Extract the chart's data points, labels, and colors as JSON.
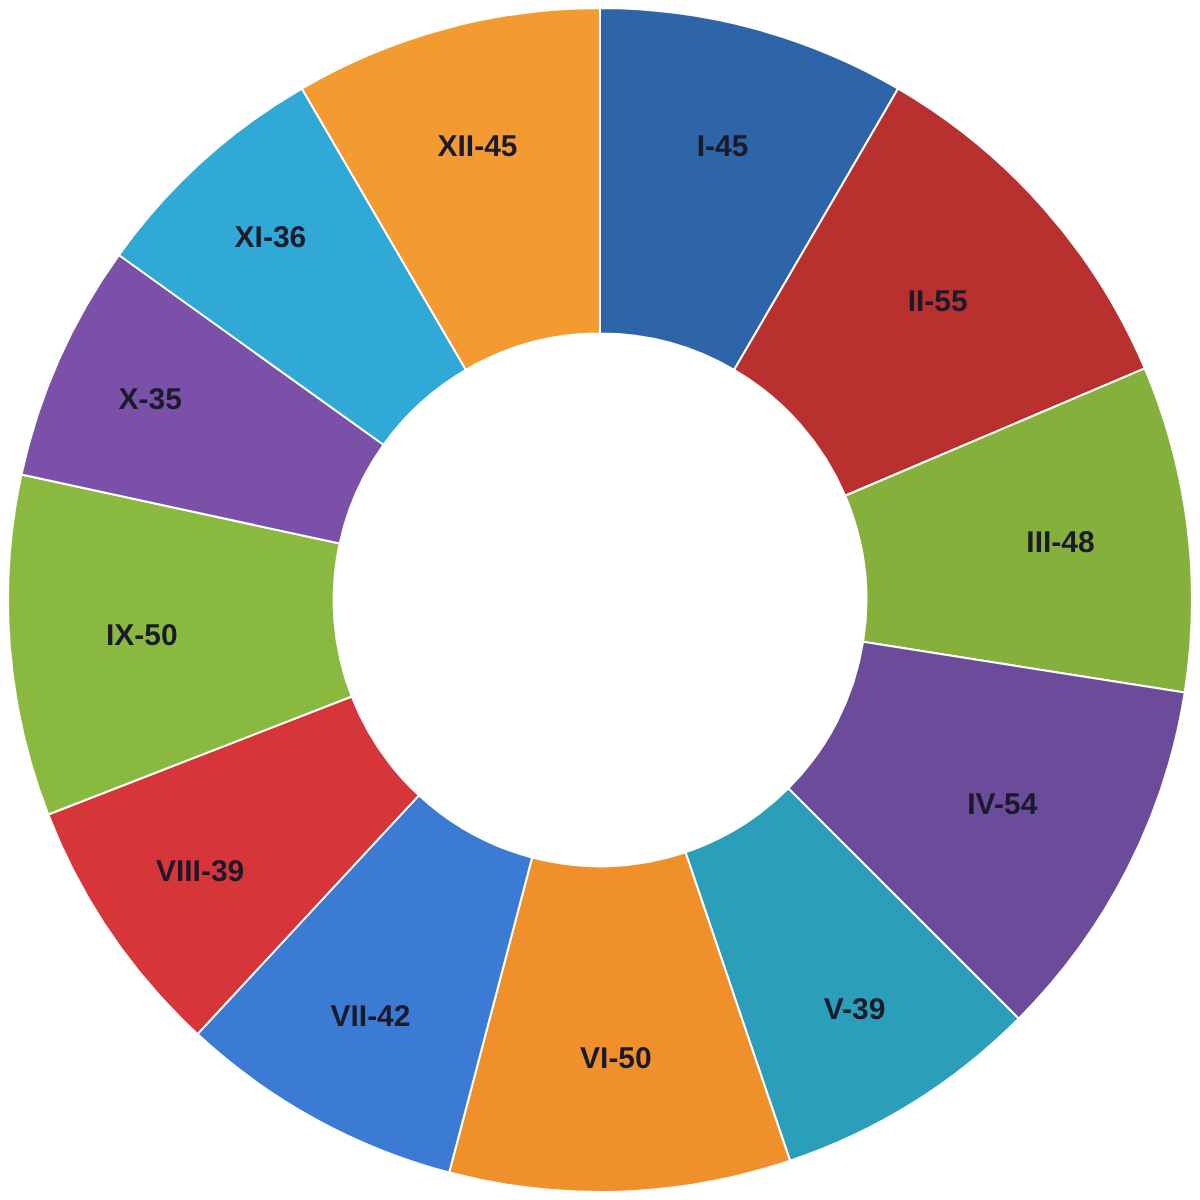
{
  "chart_data": {
    "type": "donut",
    "categories": [
      "I-45",
      "II-55",
      "III-48",
      "IV-54",
      "V-39",
      "VI-50",
      "VII-42",
      "VIII-39",
      "IX-50",
      "X-35",
      "XI-36",
      "XII-45"
    ],
    "values": [
      8.4,
      10.2,
      8.9,
      10.0,
      7.3,
      9.3,
      7.8,
      7.2,
      9.3,
      6.5,
      6.7,
      8.4
    ],
    "colors": [
      "#2e64a8",
      "#b8312f",
      "#86b03c",
      "#6b4b9a",
      "#2b9fba",
      "#f0902b",
      "#3b7bd4",
      "#d6363a",
      "#8ab93f",
      "#7b50a8",
      "#30a9d6",
      "#f39b30"
    ],
    "legend": false
  }
}
